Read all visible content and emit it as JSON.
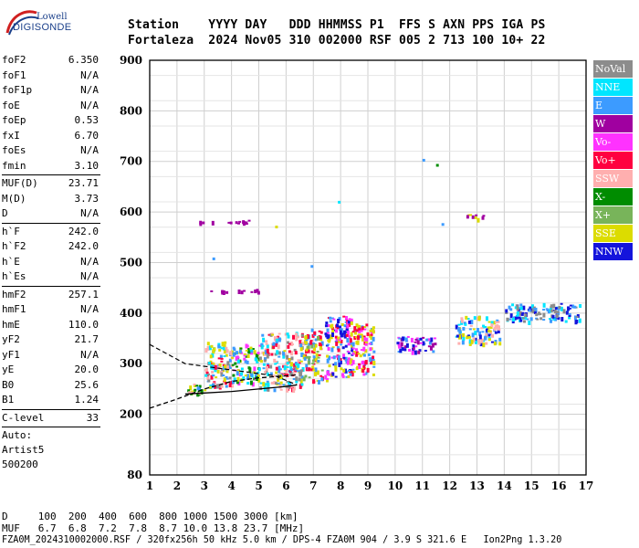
{
  "logo": {
    "line1": "Lowell",
    "line2": "DIGISONDE"
  },
  "header": {
    "row1": "Station    YYYY DAY   DDD HHMMSS P1  FFS S AXN PPS IGA PS",
    "row2": "Fortaleza  2024 Nov05 310 002000 RSF 005 2 713 100 10+ 22"
  },
  "params": [
    {
      "items": [
        [
          "foF2",
          "6.350"
        ],
        [
          "foF1",
          "N/A"
        ],
        [
          "foF1p",
          "N/A"
        ],
        [
          "foE",
          "N/A"
        ],
        [
          "foEp",
          "0.53"
        ],
        [
          "fxI",
          "6.70"
        ],
        [
          "foEs",
          "N/A"
        ],
        [
          "fmin",
          "3.10"
        ]
      ]
    },
    {
      "items": [
        [
          "MUF(D)",
          "23.71"
        ],
        [
          "M(D)",
          "3.73"
        ],
        [
          "D",
          "N/A"
        ]
      ]
    },
    {
      "items": [
        [
          "h`F",
          "242.0"
        ],
        [
          "h`F2",
          "242.0"
        ],
        [
          "h`E",
          "N/A"
        ],
        [
          "h`Es",
          "N/A"
        ]
      ]
    },
    {
      "items": [
        [
          "hmF2",
          "257.1"
        ],
        [
          "hmF1",
          "N/A"
        ],
        [
          "hmE",
          "110.0"
        ],
        [
          "yF2",
          "21.7"
        ],
        [
          "yF1",
          "N/A"
        ],
        [
          "yE",
          "20.0"
        ],
        [
          "B0",
          "25.6"
        ],
        [
          "B1",
          "1.24"
        ]
      ]
    },
    {
      "items": [
        [
          "C-level",
          "33"
        ]
      ]
    }
  ],
  "autoscale": [
    "Auto:",
    "Artist5",
    "500200"
  ],
  "footer": {
    "line1": "D     100  200  400  600  800 1000 1500 3000 [km]",
    "line2": "MUF   6.7  6.8  7.2  7.8  8.7 10.0 13.8 23.7 [MHz]",
    "line3": "FZA0M_2024310002000.RSF / 320fx256h 50 kHz 5.0 km / DPS-4 FZA0M 904 / 3.9 S 321.6 E   Ion2Png 1.3.20"
  },
  "legend": [
    {
      "label": "NoVal",
      "color": "#8c8c8c"
    },
    {
      "label": "NNE",
      "color": "#00e6ff"
    },
    {
      "label": "E",
      "color": "#3c9bff"
    },
    {
      "label": "W",
      "color": "#a000a0"
    },
    {
      "label": "Vo-",
      "color": "#ff32ff"
    },
    {
      "label": "Vo+",
      "color": "#ff0040"
    },
    {
      "label": "SSW",
      "color": "#ffafaf"
    },
    {
      "label": "X-",
      "color": "#008c00"
    },
    {
      "label": "X+",
      "color": "#78b45a"
    },
    {
      "label": "SSE",
      "color": "#dcdc00"
    },
    {
      "label": "NNW",
      "color": "#1414dc"
    }
  ],
  "chart_data": {
    "type": "scatter",
    "xlabel": "",
    "ylabel": "",
    "xlim": [
      1,
      17
    ],
    "ylim": [
      80,
      900
    ],
    "xticks": [
      1,
      2,
      3,
      4,
      5,
      6,
      7,
      8,
      9,
      10,
      11,
      12,
      13,
      14,
      15,
      16,
      17
    ],
    "yticks": [
      80,
      200,
      300,
      400,
      500,
      600,
      700,
      800,
      900
    ],
    "grid": true,
    "legend_position": "right",
    "clusters": [
      {
        "x": [
          2.3,
          3.0
        ],
        "y": [
          238,
          262
        ],
        "colors": [
          "#3c9bff",
          "#ffafaf",
          "#008c00",
          "#dcdc00"
        ]
      },
      {
        "x": [
          3.0,
          4.0
        ],
        "y": [
          255,
          345
        ],
        "colors": [
          "#3c9bff",
          "#00e6ff",
          "#ffafaf",
          "#ff0040",
          "#dcdc00",
          "#8c8c8c"
        ]
      },
      {
        "x": [
          4.0,
          5.0
        ],
        "y": [
          262,
          340
        ],
        "colors": [
          "#3c9bff",
          "#00e6ff",
          "#008c00",
          "#dcdc00",
          "#ff32ff"
        ]
      },
      {
        "x": [
          5.0,
          6.6
        ],
        "y": [
          250,
          365
        ],
        "colors": [
          "#3c9bff",
          "#00e6ff",
          "#dcdc00",
          "#ff0040",
          "#ffafaf",
          "#8c8c8c"
        ]
      },
      {
        "x": [
          6.6,
          7.3
        ],
        "y": [
          265,
          370
        ],
        "colors": [
          "#ff0040",
          "#dcdc00",
          "#78b45a",
          "#3c9bff"
        ]
      },
      {
        "x": [
          7.4,
          8.4
        ],
        "y": [
          270,
          395
        ],
        "colors": [
          "#ff0040",
          "#dcdc00",
          "#3c9bff",
          "#ff32ff",
          "#1414dc"
        ]
      },
      {
        "x": [
          8.4,
          9.2
        ],
        "y": [
          280,
          380
        ],
        "colors": [
          "#ff0040",
          "#ff32ff",
          "#dcdc00",
          "#3c9bff"
        ]
      },
      {
        "x": [
          10.0,
          11.5
        ],
        "y": [
          325,
          355
        ],
        "colors": [
          "#a000a0",
          "#1414dc",
          "#ff32ff",
          "#3c9bff"
        ]
      },
      {
        "x": [
          12.2,
          13.8
        ],
        "y": [
          340,
          395
        ],
        "colors": [
          "#00e6ff",
          "#3c9bff",
          "#ffafaf",
          "#1414dc",
          "#dcdc00"
        ]
      },
      {
        "x": [
          14.0,
          16.8
        ],
        "y": [
          385,
          420
        ],
        "colors": [
          "#1414dc",
          "#00e6ff",
          "#3c9bff",
          "#8c8c8c"
        ]
      },
      {
        "x": [
          2.8,
          4.6
        ],
        "y": [
          578,
          585
        ],
        "colors": [
          "#a000a0"
        ]
      },
      {
        "x": [
          2.8,
          5.0
        ],
        "y": [
          443,
          448
        ],
        "colors": [
          "#a000a0"
        ]
      },
      {
        "x": [
          12.6,
          13.2
        ],
        "y": [
          588,
          600
        ],
        "colors": [
          "#a000a0",
          "#dcdc00"
        ]
      }
    ],
    "traces": [
      {
        "name": "O-trace",
        "style": "solid",
        "x": [
          2.3,
          3.0,
          4.0,
          5.0,
          6.0,
          6.4
        ],
        "y": [
          240,
          242,
          245,
          250,
          255,
          258
        ]
      },
      {
        "name": "X-trace",
        "style": "dashed",
        "x": [
          1.0,
          2.0,
          3.0,
          4.0,
          5.0,
          6.0,
          6.4
        ],
        "y": [
          212,
          230,
          250,
          265,
          272,
          276,
          278
        ]
      }
    ]
  }
}
